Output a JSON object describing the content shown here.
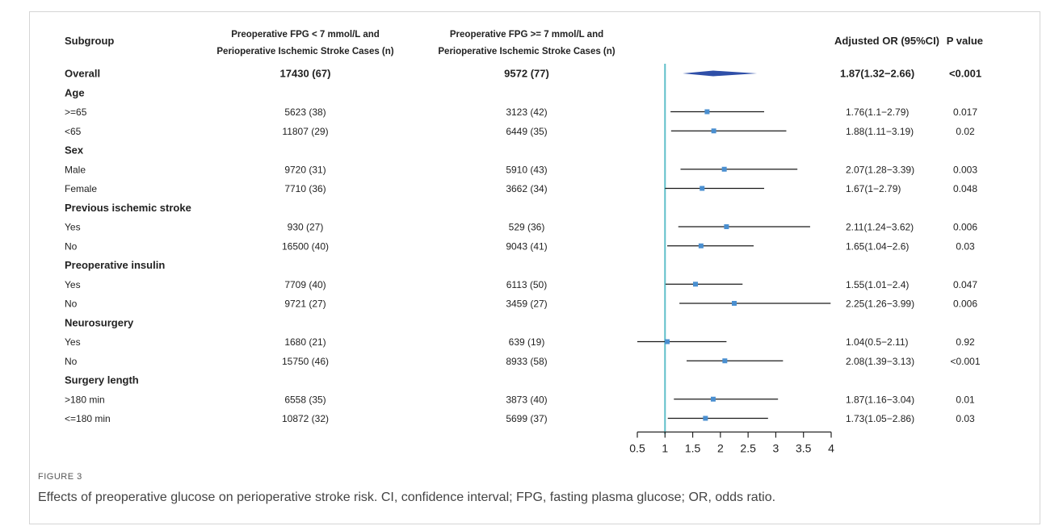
{
  "figure": {
    "label": "FIGURE 3",
    "caption": "Effects of preoperative glucose on perioperative stroke risk. CI, confidence interval; FPG, fasting plasma glucose; OR, odds ratio."
  },
  "colors": {
    "reference_line": "#5fbfc9",
    "point": "#4a8fd0",
    "diamond": "#2f4fa8",
    "ci_line": "#1a1a1a"
  },
  "chart_data": {
    "type": "forest",
    "headers": {
      "subgroup": "Subgroup",
      "col1_line1": "Preoperative FPG < 7 mmol/L  and",
      "col1_line2": "Perioperative Ischemic Stroke Cases (n)",
      "col2_line1": "Preoperative FPG >= 7 mmol/L  and",
      "col2_line2": "Perioperative Ischemic Stroke Cases (n)",
      "or": "Adjusted OR (95%CI)",
      "p": "P value"
    },
    "x_axis": {
      "ticks": [
        "0.5",
        "1",
        "1.5",
        "2",
        "2.5",
        "3",
        "3.5",
        "4"
      ],
      "range": [
        0.5,
        4
      ],
      "reference": 1
    },
    "rows": [
      {
        "label": "Overall",
        "kind": "overall",
        "n_low": "17430 (67)",
        "n_high": "9572 (77)",
        "or_text": "1.87(1.32−2.66)",
        "p": "<0.001",
        "or": 1.87,
        "lo": 1.32,
        "hi": 2.66
      },
      {
        "label": "Age",
        "kind": "group"
      },
      {
        "label": ">=65",
        "kind": "sub",
        "n_low": "5623 (38)",
        "n_high": "3123 (42)",
        "or_text": "1.76(1.1−2.79)",
        "p": "0.017",
        "or": 1.76,
        "lo": 1.1,
        "hi": 2.79
      },
      {
        "label": "<65",
        "kind": "sub",
        "n_low": "11807 (29)",
        "n_high": "6449 (35)",
        "or_text": "1.88(1.11−3.19)",
        "p": "0.02",
        "or": 1.88,
        "lo": 1.11,
        "hi": 3.19
      },
      {
        "label": "Sex",
        "kind": "group"
      },
      {
        "label": "Male",
        "kind": "sub",
        "n_low": "9720 (31)",
        "n_high": "5910 (43)",
        "or_text": "2.07(1.28−3.39)",
        "p": "0.003",
        "or": 2.07,
        "lo": 1.28,
        "hi": 3.39
      },
      {
        "label": "Female",
        "kind": "sub",
        "n_low": "7710 (36)",
        "n_high": "3662 (34)",
        "or_text": "1.67(1−2.79)",
        "p": "0.048",
        "or": 1.67,
        "lo": 1.0,
        "hi": 2.79
      },
      {
        "label": "Previous ischemic stroke",
        "kind": "group"
      },
      {
        "label": "Yes",
        "kind": "sub",
        "n_low": "930 (27)",
        "n_high": "529 (36)",
        "or_text": "2.11(1.24−3.62)",
        "p": "0.006",
        "or": 2.11,
        "lo": 1.24,
        "hi": 3.62
      },
      {
        "label": "No",
        "kind": "sub",
        "n_low": "16500 (40)",
        "n_high": "9043 (41)",
        "or_text": "1.65(1.04−2.6)",
        "p": "0.03",
        "or": 1.65,
        "lo": 1.04,
        "hi": 2.6
      },
      {
        "label": "Preoperative insulin",
        "kind": "group"
      },
      {
        "label": "Yes",
        "kind": "sub",
        "n_low": "7709 (40)",
        "n_high": "6113 (50)",
        "or_text": "1.55(1.01−2.4)",
        "p": "0.047",
        "or": 1.55,
        "lo": 1.01,
        "hi": 2.4
      },
      {
        "label": "No",
        "kind": "sub",
        "n_low": "9721 (27)",
        "n_high": "3459 (27)",
        "or_text": "2.25(1.26−3.99)",
        "p": "0.006",
        "or": 2.25,
        "lo": 1.26,
        "hi": 3.99
      },
      {
        "label": "Neurosurgery",
        "kind": "group"
      },
      {
        "label": "Yes",
        "kind": "sub",
        "n_low": "1680 (21)",
        "n_high": "639 (19)",
        "or_text": "1.04(0.5−2.11)",
        "p": "0.92",
        "or": 1.04,
        "lo": 0.5,
        "hi": 2.11
      },
      {
        "label": "No",
        "kind": "sub",
        "n_low": "15750 (46)",
        "n_high": "8933 (58)",
        "or_text": "2.08(1.39−3.13)",
        "p": "<0.001",
        "or": 2.08,
        "lo": 1.39,
        "hi": 3.13
      },
      {
        "label": "Surgery length",
        "kind": "group"
      },
      {
        "label": ">180 min",
        "kind": "sub",
        "n_low": "6558 (35)",
        "n_high": "3873 (40)",
        "or_text": "1.87(1.16−3.04)",
        "p": "0.01",
        "or": 1.87,
        "lo": 1.16,
        "hi": 3.04
      },
      {
        "label": "<=180 min",
        "kind": "sub",
        "n_low": "10872 (32)",
        "n_high": "5699 (37)",
        "or_text": "1.73(1.05−2.86)",
        "p": "0.03",
        "or": 1.73,
        "lo": 1.05,
        "hi": 2.86
      }
    ]
  }
}
